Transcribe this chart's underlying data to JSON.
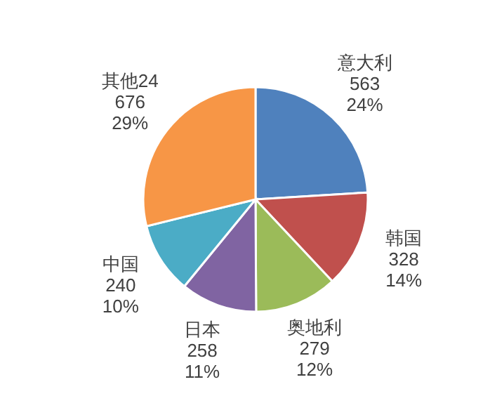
{
  "chart_data": {
    "type": "pie",
    "categories": [
      "意大利",
      "韩国",
      "奥地利",
      "日本",
      "中国",
      "其他24"
    ],
    "values": [
      563,
      328,
      279,
      258,
      240,
      676
    ],
    "value_labels": [
      "563\n24%",
      "328\n14%",
      "279\n12%",
      "258\n11%",
      "240\n10%",
      "676\n29%"
    ],
    "colors": [
      "#4f81bd",
      "#c0504d",
      "#9bbb59",
      "#8064a2",
      "#4bacc6",
      "#f79646"
    ]
  }
}
